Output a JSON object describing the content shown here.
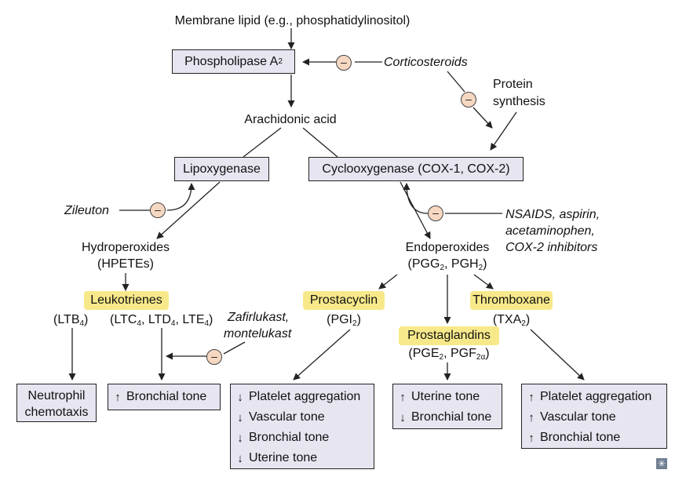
{
  "nodes": {
    "membrane": "Membrane lipid (e.g., phosphatidylinositol)",
    "phospholipase": "Phospholipase A",
    "phospholipase_sub": "2",
    "arachidonic": "Arachidonic acid",
    "lipoxygenase": "Lipoxygenase",
    "cyclooxygenase": "Cyclooxygenase (COX-1, COX-2)",
    "hydroperoxides": "Hydroperoxides",
    "hpetes": "(HPETEs)",
    "endoperoxides": "Endoperoxides",
    "pgg": "(PGG",
    "pgg_sub": "2",
    "pgh": ", PGH",
    "pgh_sub": "2",
    "pgh_close": ")"
  },
  "drugs": {
    "corticosteroids": "Corticosteroids",
    "protein": "Protein",
    "synthesis": "synthesis",
    "zileuton": "Zileuton",
    "nsaids_1": "NSAIDS, aspirin,",
    "nsaids_2": "acetaminophen,",
    "nsaids_3": "COX-2 inhibitors",
    "zafirlukast_1": "Zafirlukast,",
    "zafirlukast_2": "montelukast"
  },
  "products": {
    "leukotrienes": "Leukotrienes",
    "ltb": "(LTB",
    "ltb_sub": "4",
    "ltb_close": ")",
    "ltc": "(LTC",
    "ltc_sub": "4",
    "ltd": ", LTD",
    "ltd_sub": "4",
    "lte": ", LTE",
    "lte_sub": "4",
    "lte_close": ")",
    "prostacyclin": "Prostacyclin",
    "pgi": "(PGI",
    "pgi_sub": "2",
    "pgi_close": ")",
    "prostaglandins": "Prostaglandins",
    "pge": "(PGE",
    "pge_sub": "2",
    "pgf": ", PGF",
    "pgf_sub": "2α",
    "pgf_close": ")",
    "thromboxane": "Thromboxane",
    "txa": "(TXA",
    "txa_sub": "2",
    "txa_close": ")"
  },
  "inhibit_symbol": "–",
  "effects": {
    "neutrophil_1": "Neutrophil",
    "neutrophil_2": "chemotaxis",
    "bronchial_up": {
      "arrow": "↑",
      "label": "Bronchial tone"
    },
    "prostacyclin": [
      {
        "arrow": "↓",
        "label": "Platelet aggregation"
      },
      {
        "arrow": "↓",
        "label": "Vascular tone"
      },
      {
        "arrow": "↓",
        "label": "Bronchial tone"
      },
      {
        "arrow": "↓",
        "label": "Uterine tone"
      }
    ],
    "prostaglandins": [
      {
        "arrow": "↑",
        "label": "Uterine tone"
      },
      {
        "arrow": "↓",
        "label": "Bronchial tone"
      }
    ],
    "thromboxane": [
      {
        "arrow": "↑",
        "label": "Platelet aggregation"
      },
      {
        "arrow": "↑",
        "label": "Vascular tone"
      },
      {
        "arrow": "↑",
        "label": "Bronchial tone"
      }
    ]
  },
  "corner_icon": "asterisk-icon",
  "corner_symbol": "✳",
  "colors": {
    "box_fill": "#e6e5f0",
    "highlight": "#f7e98a",
    "inhibit_fill": "#f6d7c2"
  }
}
